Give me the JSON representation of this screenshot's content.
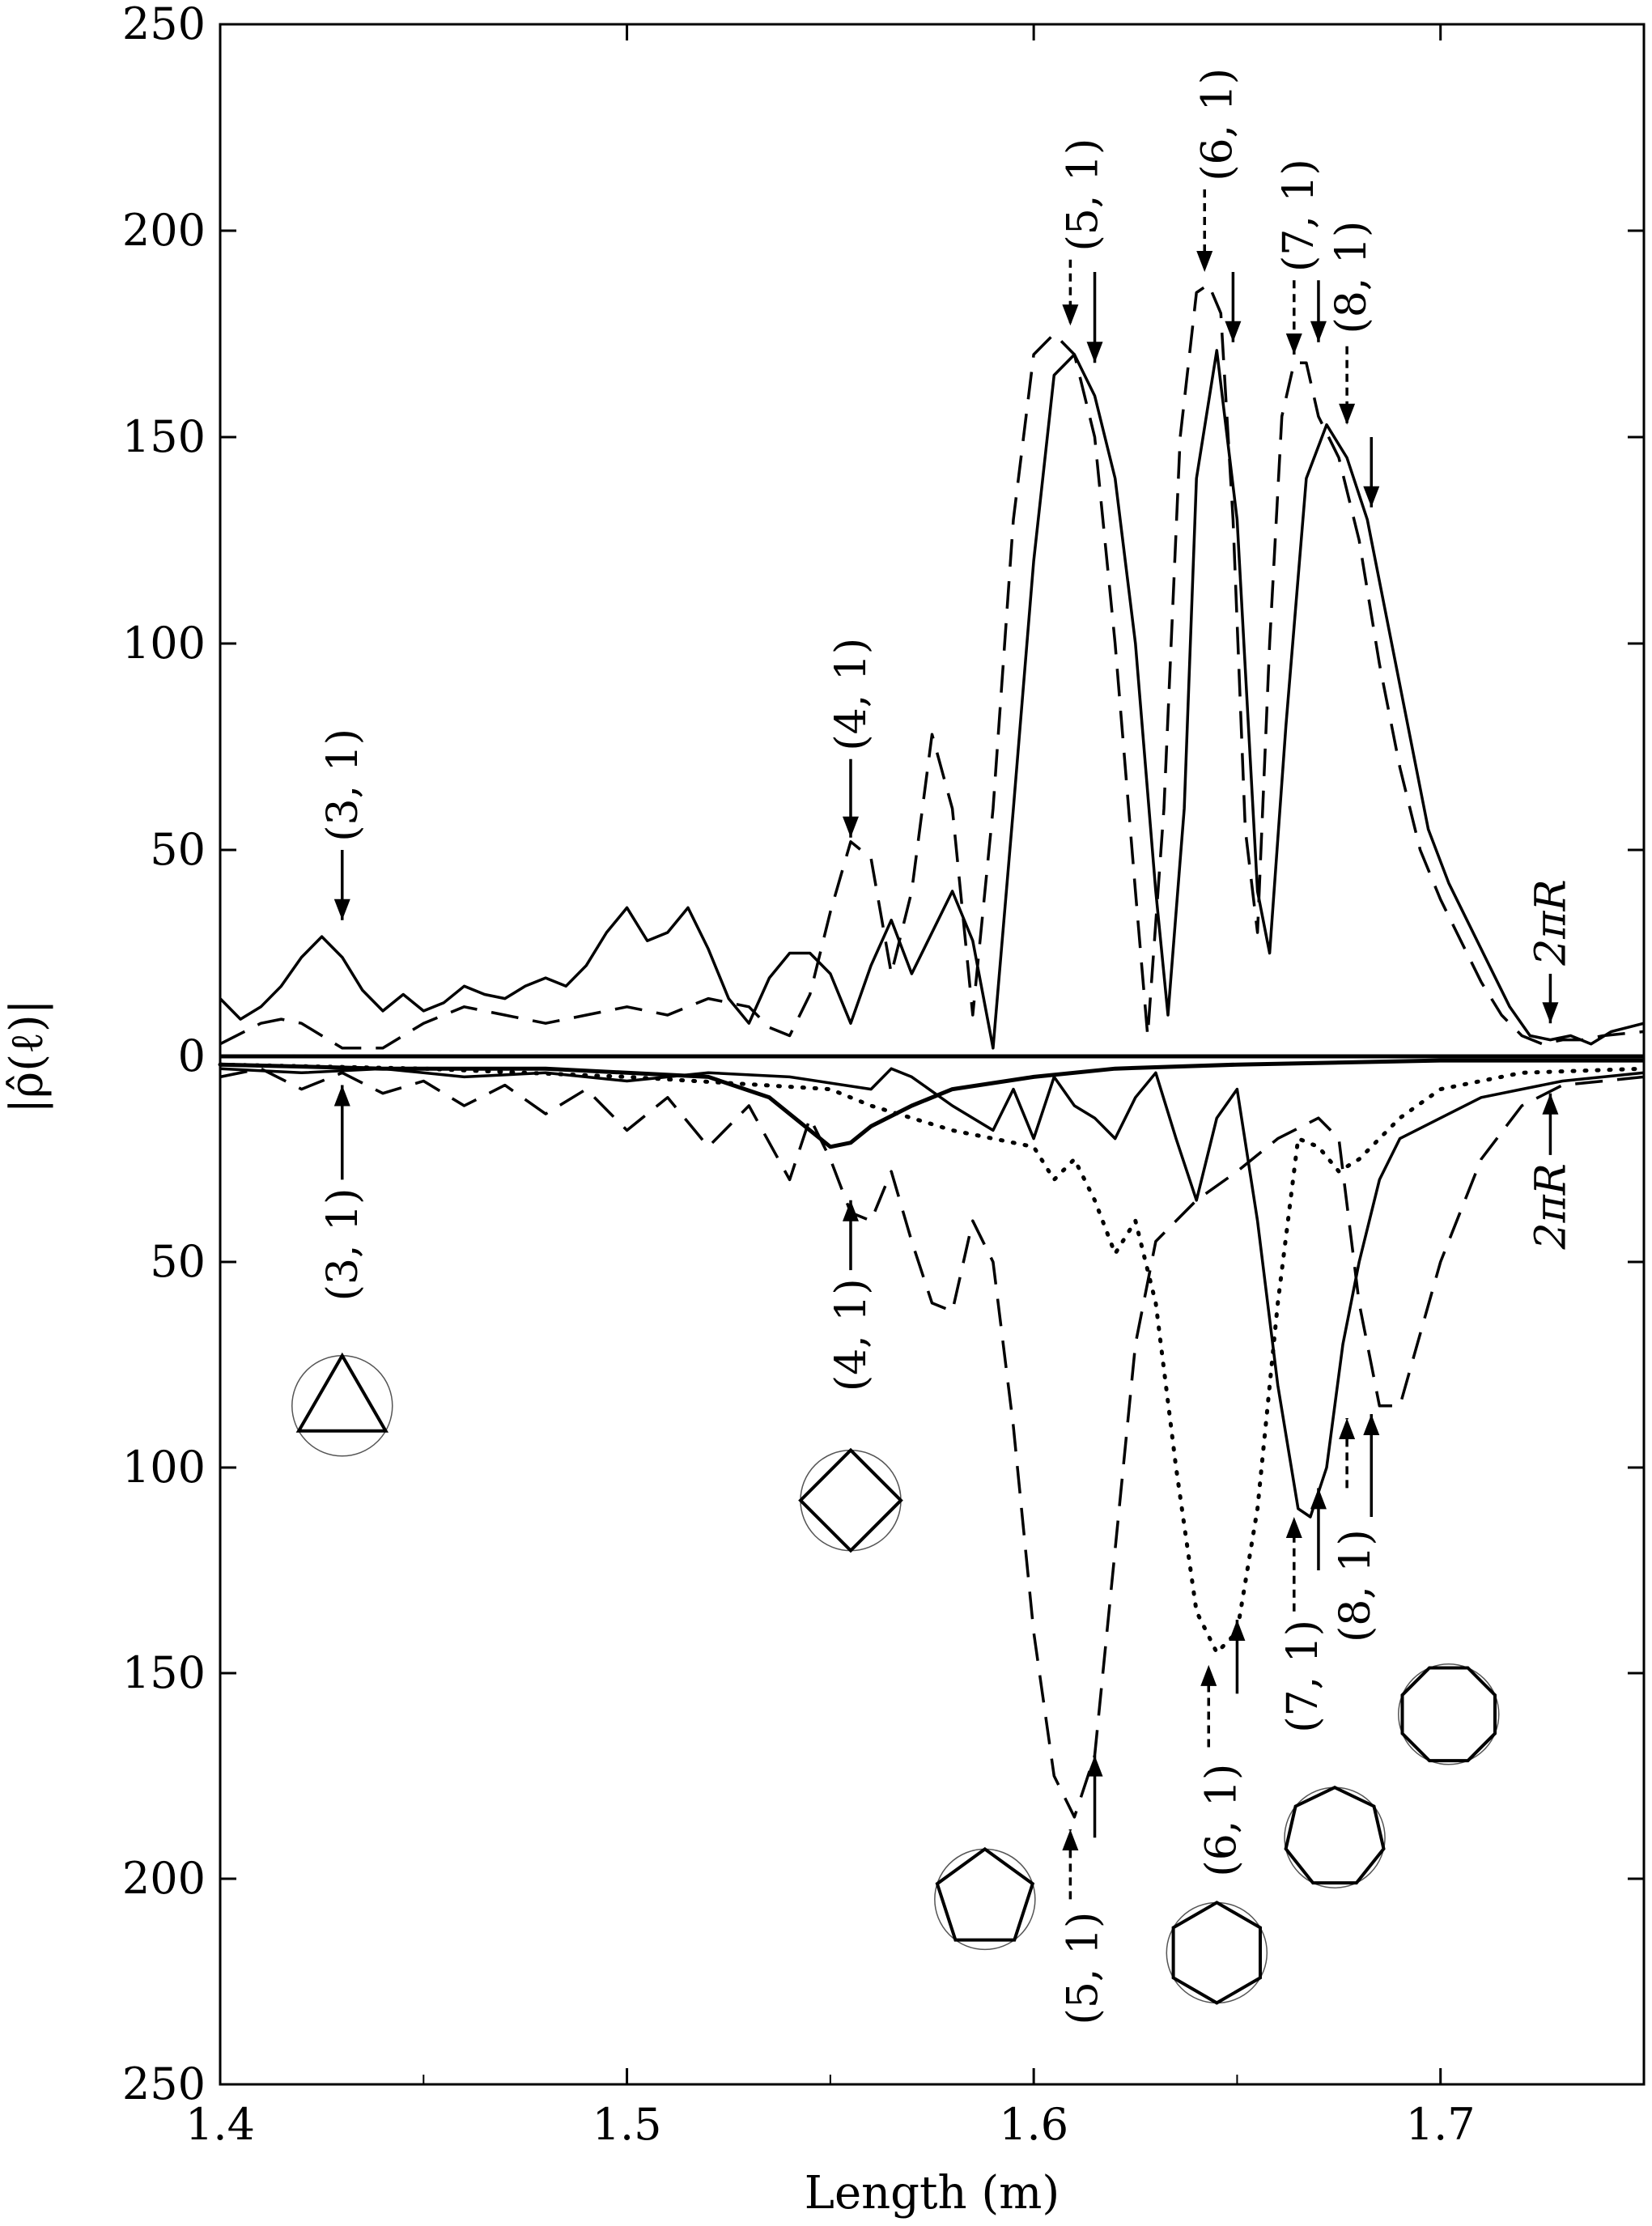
{
  "chart_data": {
    "type": "line",
    "xlabel": "Length (m)",
    "ylabel": "|ρ̂(ℓ)|",
    "xlim": [
      1.4,
      1.75
    ],
    "ylim_top": [
      0,
      250
    ],
    "ylim_bottom_mirrored": [
      0,
      250
    ],
    "x_ticks": [
      "1.4",
      "1.5",
      "1.6",
      "1.7"
    ],
    "y_ticks_top": [
      "0",
      "50",
      "100",
      "150",
      "200",
      "250"
    ],
    "y_ticks_bottom": [
      "50",
      "100",
      "150",
      "200",
      "250"
    ],
    "grid": false,
    "legend": "none",
    "top_panel": {
      "series": [
        {
          "style": "solid",
          "x": [
            1.4,
            1.405,
            1.41,
            1.415,
            1.42,
            1.425,
            1.43,
            1.435,
            1.44,
            1.445,
            1.45,
            1.455,
            1.46,
            1.465,
            1.47,
            1.475,
            1.48,
            1.485,
            1.49,
            1.495,
            1.5,
            1.505,
            1.51,
            1.515,
            1.52,
            1.525,
            1.53,
            1.535,
            1.54,
            1.545,
            1.55,
            1.555,
            1.56,
            1.565,
            1.57,
            1.575,
            1.58,
            1.585,
            1.59,
            1.595,
            1.6,
            1.605,
            1.61,
            1.615,
            1.62,
            1.625,
            1.63,
            1.633,
            1.637,
            1.64,
            1.645,
            1.65,
            1.655,
            1.658,
            1.662,
            1.667,
            1.672,
            1.677,
            1.682,
            1.687,
            1.692,
            1.697,
            1.702,
            1.707,
            1.712,
            1.717,
            1.722,
            1.727,
            1.732,
            1.737,
            1.742,
            1.75
          ],
          "y": [
            14,
            9,
            12,
            17,
            24,
            29,
            24,
            16,
            11,
            15,
            11,
            13,
            17,
            15,
            14,
            17,
            19,
            17,
            22,
            30,
            36,
            28,
            30,
            36,
            26,
            14,
            8,
            19,
            25,
            25,
            20,
            8,
            22,
            33,
            20,
            30,
            40,
            28,
            2,
            60,
            120,
            165,
            170,
            160,
            140,
            100,
            40,
            10,
            60,
            140,
            171,
            130,
            40,
            25,
            80,
            140,
            153,
            145,
            130,
            105,
            80,
            55,
            42,
            32,
            22,
            12,
            5,
            4,
            5,
            3,
            6,
            8
          ]
        },
        {
          "style": "dashed",
          "x": [
            1.4,
            1.41,
            1.415,
            1.42,
            1.425,
            1.43,
            1.44,
            1.45,
            1.46,
            1.47,
            1.48,
            1.49,
            1.5,
            1.51,
            1.52,
            1.53,
            1.535,
            1.54,
            1.545,
            1.55,
            1.555,
            1.56,
            1.565,
            1.57,
            1.575,
            1.58,
            1.585,
            1.59,
            1.595,
            1.6,
            1.605,
            1.61,
            1.615,
            1.62,
            1.625,
            1.628,
            1.632,
            1.636,
            1.64,
            1.643,
            1.646,
            1.649,
            1.652,
            1.655,
            1.658,
            1.661,
            1.664,
            1.667,
            1.67,
            1.675,
            1.68,
            1.685,
            1.69,
            1.695,
            1.7,
            1.705,
            1.71,
            1.715,
            1.72,
            1.725,
            1.73,
            1.735,
            1.74,
            1.75
          ],
          "y": [
            3,
            8,
            9,
            8,
            5,
            2,
            2,
            8,
            12,
            10,
            8,
            10,
            12,
            10,
            14,
            12,
            7,
            5,
            15,
            35,
            52,
            48,
            20,
            40,
            78,
            60,
            10,
            60,
            130,
            170,
            175,
            170,
            150,
            100,
            40,
            5,
            60,
            150,
            185,
            187,
            180,
            130,
            55,
            30,
            100,
            155,
            168,
            168,
            155,
            145,
            125,
            95,
            70,
            50,
            38,
            28,
            18,
            10,
            5,
            3,
            4,
            4,
            5,
            6
          ]
        }
      ]
    },
    "bottom_panel": {
      "series": [
        {
          "style": "thick-solid",
          "x": [
            1.4,
            1.44,
            1.48,
            1.52,
            1.535,
            1.545,
            1.55,
            1.555,
            1.56,
            1.57,
            1.58,
            1.6,
            1.62,
            1.65,
            1.7,
            1.75
          ],
          "y": [
            2,
            3,
            3,
            5,
            10,
            18,
            22,
            21,
            17,
            12,
            8,
            5,
            3,
            2,
            1,
            1
          ]
        },
        {
          "style": "solid",
          "x": [
            1.4,
            1.42,
            1.44,
            1.46,
            1.48,
            1.5,
            1.52,
            1.54,
            1.56,
            1.565,
            1.57,
            1.58,
            1.59,
            1.595,
            1.6,
            1.605,
            1.61,
            1.615,
            1.62,
            1.625,
            1.63,
            1.635,
            1.64,
            1.645,
            1.65,
            1.655,
            1.66,
            1.665,
            1.668,
            1.672,
            1.676,
            1.68,
            1.685,
            1.69,
            1.7,
            1.71,
            1.72,
            1.73,
            1.75
          ],
          "y": [
            3,
            4,
            3,
            5,
            4,
            6,
            4,
            5,
            8,
            3,
            5,
            12,
            18,
            8,
            20,
            5,
            12,
            15,
            20,
            10,
            4,
            20,
            35,
            15,
            8,
            40,
            80,
            110,
            112,
            100,
            70,
            50,
            30,
            20,
            15,
            10,
            8,
            6,
            4
          ]
        },
        {
          "style": "dashed",
          "x": [
            1.4,
            1.41,
            1.42,
            1.43,
            1.44,
            1.45,
            1.46,
            1.47,
            1.48,
            1.49,
            1.5,
            1.51,
            1.52,
            1.53,
            1.54,
            1.545,
            1.55,
            1.555,
            1.56,
            1.565,
            1.57,
            1.575,
            1.58,
            1.585,
            1.59,
            1.595,
            1.6,
            1.605,
            1.61,
            1.615,
            1.62,
            1.625,
            1.63,
            1.64,
            1.65,
            1.66,
            1.67,
            1.675,
            1.68,
            1.685,
            1.69,
            1.7,
            1.71,
            1.72,
            1.73,
            1.75
          ],
          "y": [
            5,
            3,
            8,
            4,
            9,
            6,
            12,
            7,
            14,
            8,
            18,
            10,
            22,
            12,
            30,
            15,
            25,
            38,
            40,
            28,
            45,
            60,
            62,
            40,
            50,
            90,
            140,
            175,
            185,
            170,
            120,
            70,
            45,
            35,
            28,
            20,
            15,
            20,
            60,
            85,
            85,
            50,
            25,
            12,
            7,
            5
          ]
        },
        {
          "style": "dotted",
          "x": [
            1.4,
            1.45,
            1.5,
            1.55,
            1.56,
            1.57,
            1.58,
            1.59,
            1.6,
            1.605,
            1.61,
            1.615,
            1.62,
            1.625,
            1.63,
            1.635,
            1.64,
            1.645,
            1.65,
            1.655,
            1.66,
            1.665,
            1.67,
            1.675,
            1.68,
            1.69,
            1.7,
            1.72,
            1.75
          ],
          "y": [
            2,
            3,
            5,
            8,
            12,
            15,
            18,
            20,
            22,
            30,
            25,
            35,
            48,
            40,
            60,
            100,
            135,
            145,
            140,
            110,
            60,
            20,
            22,
            28,
            25,
            15,
            8,
            4,
            3
          ]
        }
      ]
    },
    "annotations_top": [
      "(3, 1)",
      "(4, 1)",
      "(5, 1)",
      "(6, 1)",
      "(7, 1)",
      "(8, 1)",
      "2πR"
    ],
    "annotations_bottom": [
      "(3, 1)",
      "(4, 1)",
      "(5, 1)",
      "(6, 1)",
      "(7, 1)",
      "(8, 1)",
      "2πR"
    ]
  }
}
